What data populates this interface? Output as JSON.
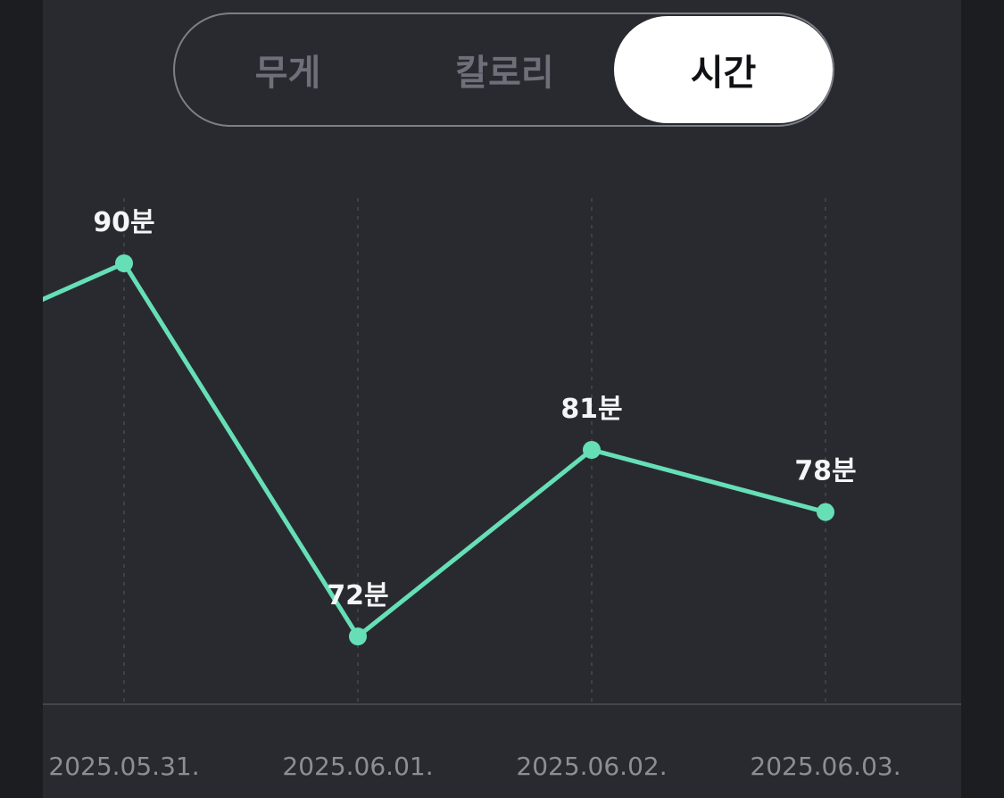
{
  "tabs": [
    {
      "label": "무게",
      "active": false
    },
    {
      "label": "칼로리",
      "active": false
    },
    {
      "label": "시간",
      "active": true
    }
  ],
  "colors": {
    "background": "#292a30",
    "line": "#66dfb6",
    "active_tab_bg": "#ffffff",
    "inactive_tab_text": "#6e7079",
    "label_text": "#f4f5f7",
    "axis_label_text": "#8c8e96"
  },
  "chart_data": {
    "type": "line",
    "title": "",
    "xlabel": "",
    "ylabel": "",
    "unit": "분",
    "categories": [
      "2025.05.31.",
      "2025.06.01.",
      "2025.06.02.",
      "2025.06.03."
    ],
    "series": [
      {
        "values": [
          90,
          72,
          81,
          78
        ],
        "labels": [
          "90분",
          "72분",
          "81분",
          "78분"
        ]
      }
    ],
    "previous_value_offscreen": 85,
    "grid": "dotted vertical lines at each category",
    "legend": "none"
  }
}
